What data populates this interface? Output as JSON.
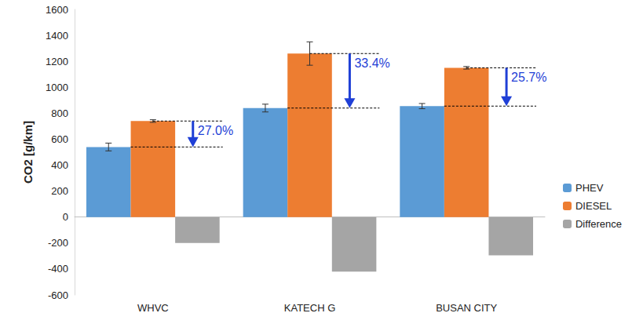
{
  "chart_data": {
    "type": "bar",
    "y_label": "CO2 [g/km]",
    "categories": [
      "WHVC",
      "KATECH G",
      "BUSAN CITY"
    ],
    "series": [
      {
        "name": "PHEV",
        "color": "#5b9bd5",
        "values": [
          540,
          840,
          855
        ],
        "errors": [
          30,
          30,
          20
        ]
      },
      {
        "name": "DIESEL",
        "color": "#ed7d31",
        "values": [
          740,
          1260,
          1150
        ],
        "errors": [
          10,
          90,
          10
        ]
      },
      {
        "name": "Difference",
        "color": "#a5a5a5",
        "values": [
          -200,
          -420,
          -295
        ]
      }
    ],
    "annotations": [
      {
        "category": "WHVC",
        "text": "27.0%",
        "from": "DIESEL",
        "to": "PHEV"
      },
      {
        "category": "KATECH G",
        "text": "33.4%",
        "from": "DIESEL",
        "to": "PHEV"
      },
      {
        "category": "BUSAN CITY",
        "text": "25.7%",
        "from": "DIESEL",
        "to": "PHEV"
      }
    ],
    "ylim": [
      -600,
      1600
    ],
    "yticks": [
      -600,
      -400,
      -200,
      0,
      200,
      400,
      600,
      800,
      1000,
      1200,
      1400,
      1600
    ],
    "grid": false,
    "legend": "right"
  }
}
